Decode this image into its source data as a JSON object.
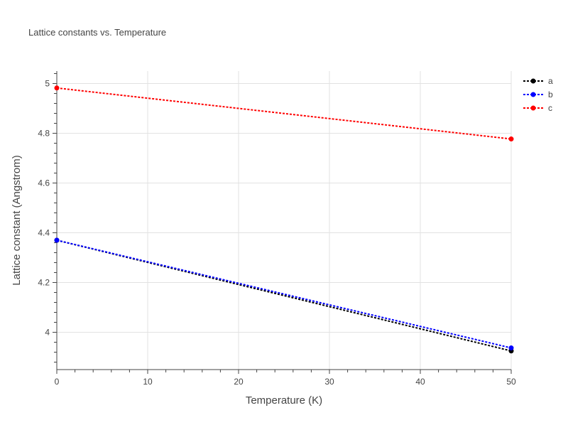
{
  "chart_data": {
    "type": "line",
    "title": "Lattice constants vs. Temperature",
    "xlabel": "Temperature (K)",
    "ylabel": "Lattice constant (Angstrom)",
    "xlim": [
      0,
      50
    ],
    "ylim": [
      3.85,
      5.05
    ],
    "x_ticks": [
      0,
      10,
      20,
      30,
      40,
      50
    ],
    "y_ticks": [
      4,
      4.2,
      4.4,
      4.6,
      4.8,
      5
    ],
    "grid": true,
    "legend_position": "top-right",
    "series": [
      {
        "name": "a",
        "color": "#000000",
        "x": [
          0,
          50
        ],
        "y": [
          4.37,
          3.925
        ]
      },
      {
        "name": "b",
        "color": "#0000ff",
        "x": [
          0,
          50
        ],
        "y": [
          4.37,
          3.937
        ]
      },
      {
        "name": "c",
        "color": "#ff0000",
        "x": [
          0,
          50
        ],
        "y": [
          4.982,
          4.777
        ]
      }
    ]
  }
}
